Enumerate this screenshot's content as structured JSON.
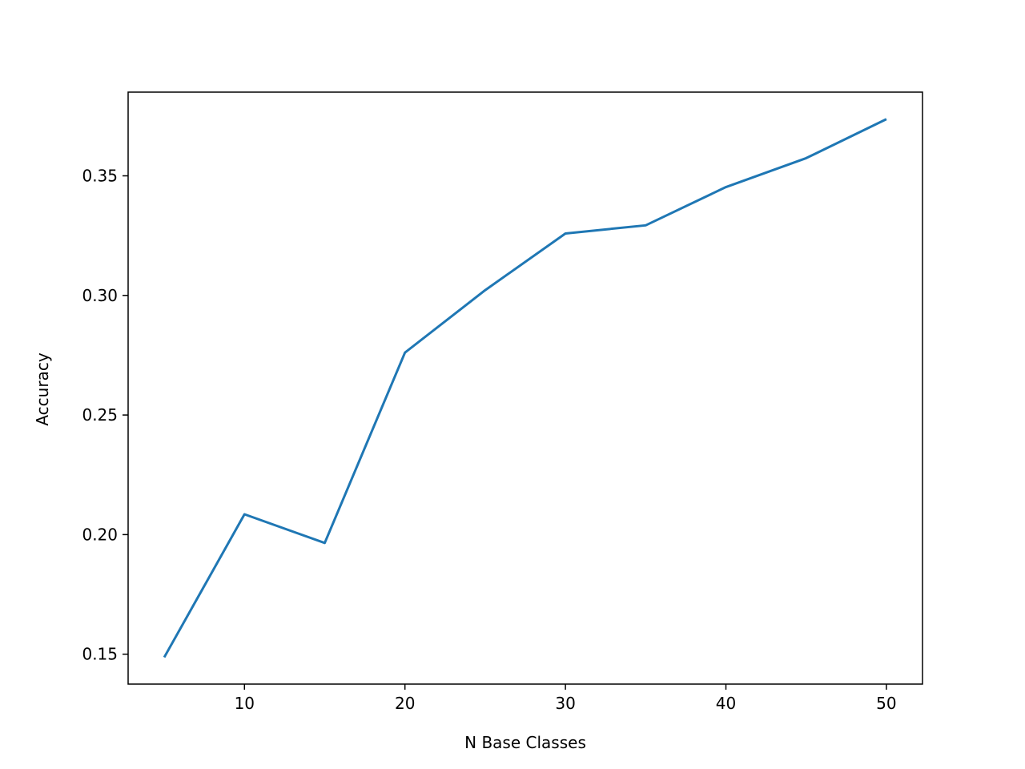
{
  "chart_data": {
    "type": "line",
    "x_label": "N Base Classes",
    "y_label": "Accuracy",
    "x": [
      5,
      10,
      15,
      20,
      25,
      30,
      35,
      40,
      45,
      50
    ],
    "series": [
      {
        "color": "#1f77b4",
        "values": [
          0.1487,
          0.2085,
          0.1965,
          0.2761,
          0.3022,
          0.3259,
          0.3293,
          0.3453,
          0.3574,
          0.3737
        ]
      }
    ],
    "xlim": [
      2.75,
      52.25
    ],
    "ylim": [
      0.1375,
      0.385
    ],
    "xticks": [
      10,
      20,
      30,
      40,
      50
    ],
    "yticks": [
      0.15,
      {
        "value": 0.2,
        "label": "0.20"
      },
      0.25,
      {
        "value": 0.3,
        "label": "0.30"
      },
      0.35
    ],
    "grid": false
  }
}
